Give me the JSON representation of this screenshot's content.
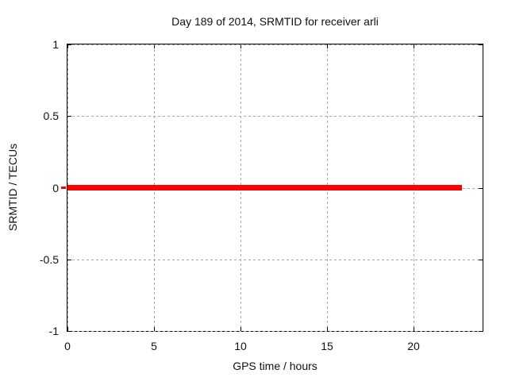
{
  "chart_data": {
    "type": "line",
    "title": "Day 189 of 2014, SRMTID for receiver arli",
    "xlabel": "GPS time / hours",
    "ylabel": "SRMTID / TECUs",
    "xlim": [
      0,
      24
    ],
    "ylim": [
      -1,
      1
    ],
    "xticks": [
      0,
      5,
      10,
      15,
      20
    ],
    "xtick_labels": [
      "0",
      "5",
      "10",
      "15",
      "20"
    ],
    "yticks": [
      1,
      0.5,
      0,
      -0.5,
      -1
    ],
    "ytick_labels": [
      "1",
      "0.5",
      "0",
      "-0.5",
      "-1"
    ],
    "grid": true,
    "grid_style": "dashed",
    "legend_position": "none",
    "series": [
      {
        "name": "SRMTID",
        "shape": "constant horizontal line",
        "y_value": 0,
        "x_start": 0,
        "x_end": 22.8,
        "color": "#ff0000",
        "thickness_px": 7
      }
    ]
  },
  "colors": {
    "background": "#ffffff",
    "axis": "#000000",
    "grid": "#a8a8a8",
    "text": "#111111",
    "line": "#ff0000"
  }
}
